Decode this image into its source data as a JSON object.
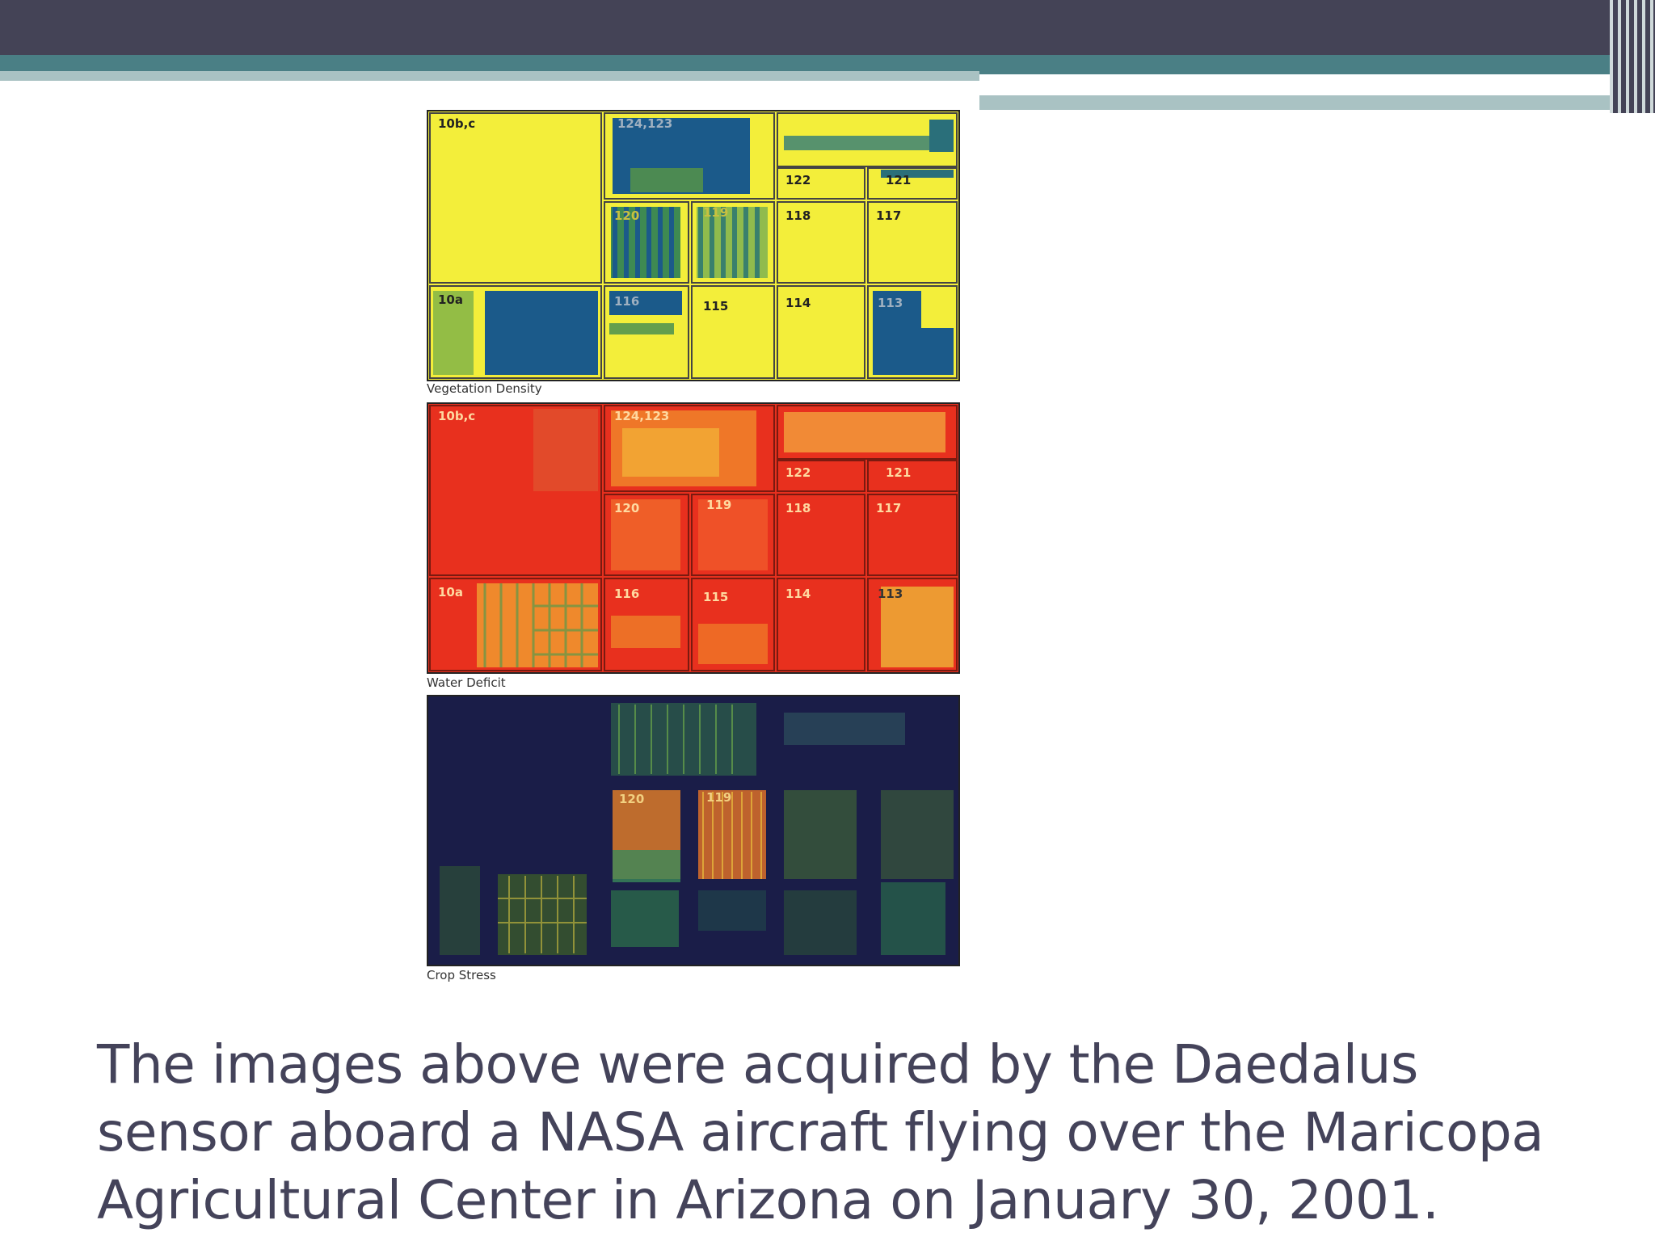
{
  "header": {
    "colors": {
      "dark": "#444356",
      "teal": "#4a7f85",
      "light": "#a9c2c3"
    }
  },
  "figure": {
    "panels": [
      {
        "label": "Vegetation Density",
        "plots": {
          "a": "10b,c",
          "b": "124,123",
          "c": "122",
          "d": "121",
          "e": "120",
          "f": "119",
          "g": "118",
          "h": "117",
          "i": "10a",
          "j": "116",
          "k": "115",
          "l": "114",
          "m": "113"
        }
      },
      {
        "label": "Water Deficit",
        "plots": {
          "a": "10b,c",
          "b": "124,123",
          "c": "122",
          "d": "121",
          "e": "120",
          "f": "119",
          "g": "118",
          "h": "117",
          "i": "10a",
          "j": "116",
          "k": "115",
          "l": "114",
          "m": "113"
        }
      },
      {
        "label": "Crop Stress",
        "plots": {
          "e": "120",
          "f": "119"
        }
      }
    ]
  },
  "caption": "The images above were acquired by the Daedalus sensor aboard a NASA aircraft flying over the Maricopa Agricultural Center in Arizona on January 30, 2001."
}
